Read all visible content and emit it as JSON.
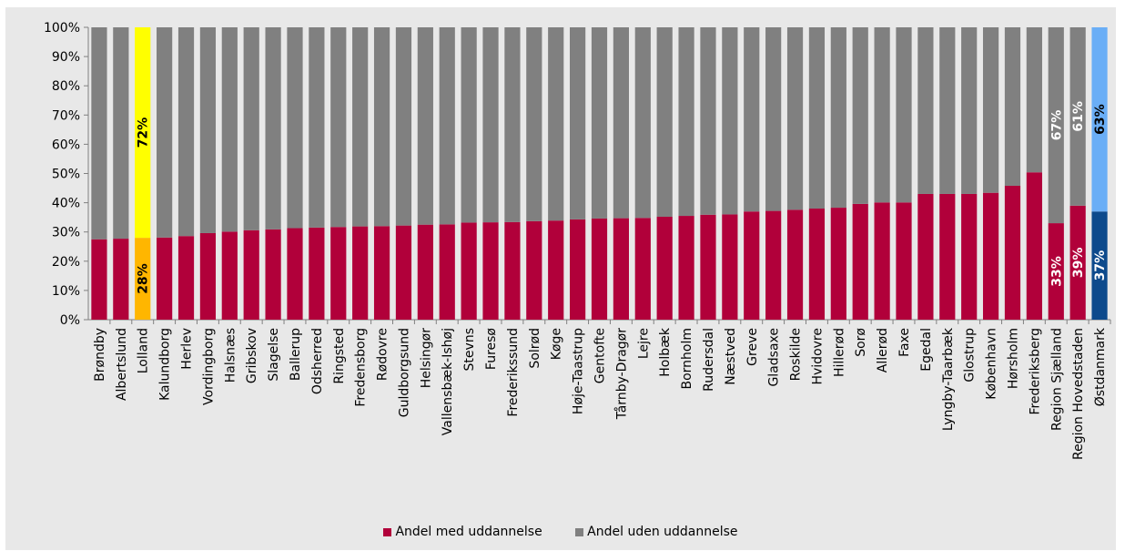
{
  "chart_data": {
    "type": "bar",
    "stacked": true,
    "percent": true,
    "ylim": [
      0,
      100
    ],
    "yticks": [
      "0%",
      "10%",
      "20%",
      "30%",
      "40%",
      "50%",
      "60%",
      "70%",
      "80%",
      "90%",
      "100%"
    ],
    "grid": false,
    "legend": "bottom",
    "categories": [
      "Brøndby",
      "Albertslund",
      "Lolland",
      "Kalundborg",
      "Herlev",
      "Vordingborg",
      "Halsnæs",
      "Gribskov",
      "Slagelse",
      "Ballerup",
      "Odsherred",
      "Ringsted",
      "Fredensborg",
      "Rødovre",
      "Guldborgsund",
      "Helsingør",
      "Vallensbæk-Ishøj",
      "Stevns",
      "Furesø",
      "Frederikssund",
      "Solrød",
      "Køge",
      "Høje-Taastrup",
      "Gentofte",
      "Tårnby-Dragør",
      "Lejre",
      "Holbæk",
      "Bornholm",
      "Rudersdal",
      "Næstved",
      "Greve",
      "Gladsaxe",
      "Roskilde",
      "Hvidovre",
      "Hillerød",
      "Sorø",
      "Allerød",
      "Faxe",
      "Egedal",
      "Lyngby-Taarbæk",
      "Glostrup",
      "København",
      "Hørsholm",
      "Frederiksberg",
      "Region Sjælland",
      "Region Hovedstaden",
      "Østdanmark"
    ],
    "series": [
      {
        "name": "Andel med uddannelse",
        "color": "#b1003a",
        "values": [
          27.5,
          27.7,
          28,
          28.1,
          28.6,
          29.6,
          30.1,
          30.6,
          30.9,
          31.3,
          31.5,
          31.7,
          31.9,
          32,
          32.2,
          32.5,
          32.6,
          33.2,
          33.3,
          33.4,
          33.7,
          33.9,
          34.3,
          34.6,
          34.7,
          34.8,
          35.2,
          35.5,
          35.9,
          36,
          37,
          37.2,
          37.6,
          38,
          38.3,
          39.6,
          40.1,
          40.1,
          43,
          43,
          43,
          43.4,
          45.8,
          50.4,
          33,
          39,
          37
        ]
      },
      {
        "name": "Andel uden uddannelse",
        "color": "#808080",
        "values": [
          72.5,
          72.3,
          72,
          71.9,
          71.4,
          70.4,
          69.9,
          69.4,
          69.1,
          68.7,
          68.5,
          68.3,
          68.1,
          68,
          67.8,
          67.5,
          67.4,
          66.8,
          66.7,
          66.6,
          66.3,
          66.1,
          65.7,
          65.4,
          65.3,
          65.2,
          64.8,
          64.5,
          64.1,
          64,
          63,
          62.8,
          62.4,
          62,
          61.7,
          60.4,
          59.9,
          59.9,
          57,
          57,
          57,
          56.6,
          54.2,
          49.6,
          67,
          61,
          63
        ]
      }
    ],
    "highlight_colors": {
      "Lolland": {
        "lower": "#ffb600",
        "upper": "#ffff00"
      },
      "Østdanmark": {
        "lower": "#0d4a8c",
        "upper": "#6aaef6"
      }
    },
    "data_labels": [
      {
        "category": "Lolland",
        "series": "Andel med uddannelse",
        "text": "28%",
        "color": "#000000"
      },
      {
        "category": "Lolland",
        "series": "Andel uden uddannelse",
        "text": "72%",
        "color": "#000000"
      },
      {
        "category": "Region Sjælland",
        "series": "Andel med uddannelse",
        "text": "33%",
        "color": "#ffffff"
      },
      {
        "category": "Region Sjælland",
        "series": "Andel uden uddannelse",
        "text": "67%",
        "color": "#ffffff"
      },
      {
        "category": "Region Hovedstaden",
        "series": "Andel med uddannelse",
        "text": "39%",
        "color": "#ffffff"
      },
      {
        "category": "Region Hovedstaden",
        "series": "Andel uden uddannelse",
        "text": "61%",
        "color": "#ffffff"
      },
      {
        "category": "Østdanmark",
        "series": "Andel med uddannelse",
        "text": "37%",
        "color": "#ffffff"
      },
      {
        "category": "Østdanmark",
        "series": "Andel uden uddannelse",
        "text": "63%",
        "color": "#000000"
      }
    ]
  },
  "legend": {
    "item1": "Andel med uddannelse",
    "item2": "Andel uden uddannelse"
  }
}
